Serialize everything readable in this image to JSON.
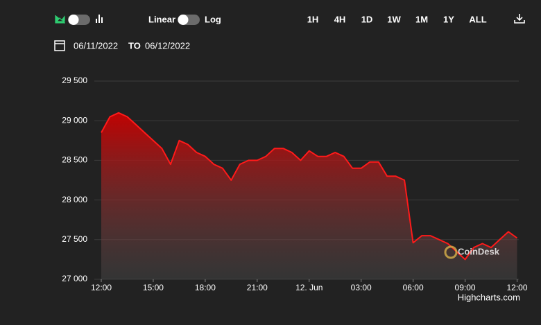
{
  "controls": {
    "scale_linear": "Linear",
    "scale_log": "Log",
    "ranges": [
      "1H",
      "4H",
      "1D",
      "1W",
      "1M",
      "1Y",
      "ALL"
    ],
    "active_range": "1D",
    "active_color": "#2ecc71",
    "date_from": "06/11/2022",
    "date_to_word": "TO",
    "date_to": "06/12/2022"
  },
  "chart_data": {
    "type": "area",
    "x": [
      0,
      0.5,
      1,
      1.5,
      2,
      2.5,
      3,
      3.5,
      4,
      4.5,
      5,
      5.5,
      6,
      6.5,
      7,
      7.5,
      8,
      8.5,
      9,
      9.5,
      10,
      10.5,
      11,
      11.5,
      12,
      12.5,
      13,
      13.5,
      14,
      14.5,
      15,
      15.5,
      16,
      16.5,
      17,
      17.5,
      18,
      18.5,
      19,
      19.5,
      20,
      20.5,
      21,
      21.5,
      22,
      22.5,
      23,
      23.5,
      24
    ],
    "series": [
      {
        "color": "#ff1a1a",
        "values": [
          28850,
          29050,
          29100,
          29050,
          28950,
          28850,
          28750,
          28650,
          28450,
          28750,
          28700,
          28600,
          28550,
          28450,
          28400,
          28250,
          28450,
          28500,
          28500,
          28550,
          28650,
          28650,
          28600,
          28500,
          28620,
          28550,
          28550,
          28600,
          28550,
          28400,
          28400,
          28480,
          28480,
          28300,
          28300,
          28250,
          27460,
          27550,
          27550,
          27500,
          27450,
          27350,
          27250,
          27400,
          27450,
          27400,
          27500,
          27600,
          27520
        ]
      }
    ],
    "xlim": [
      0,
      24.1
    ],
    "xticks": [
      {
        "value": 0,
        "label": "12:00"
      },
      {
        "value": 3,
        "label": "15:00"
      },
      {
        "value": 6,
        "label": "18:00"
      },
      {
        "value": 9,
        "label": "21:00"
      },
      {
        "value": 12,
        "label": "12. Jun"
      },
      {
        "value": 15,
        "label": "03:00"
      },
      {
        "value": 18,
        "label": "06:00"
      },
      {
        "value": 21,
        "label": "09:00"
      },
      {
        "value": 24,
        "label": "12:00"
      }
    ],
    "ylim": [
      27000,
      29500
    ],
    "yticks": [
      {
        "value": 27000,
        "label": "27 000"
      },
      {
        "value": 27500,
        "label": "27 500"
      },
      {
        "value": 28000,
        "label": "28 000"
      },
      {
        "value": 28500,
        "label": "28 500"
      },
      {
        "value": 29000,
        "label": "29 000"
      },
      {
        "value": 29500,
        "label": "29 500"
      }
    ],
    "grid": true,
    "watermark": "CoinDesk",
    "credits": "Highcharts.com"
  }
}
